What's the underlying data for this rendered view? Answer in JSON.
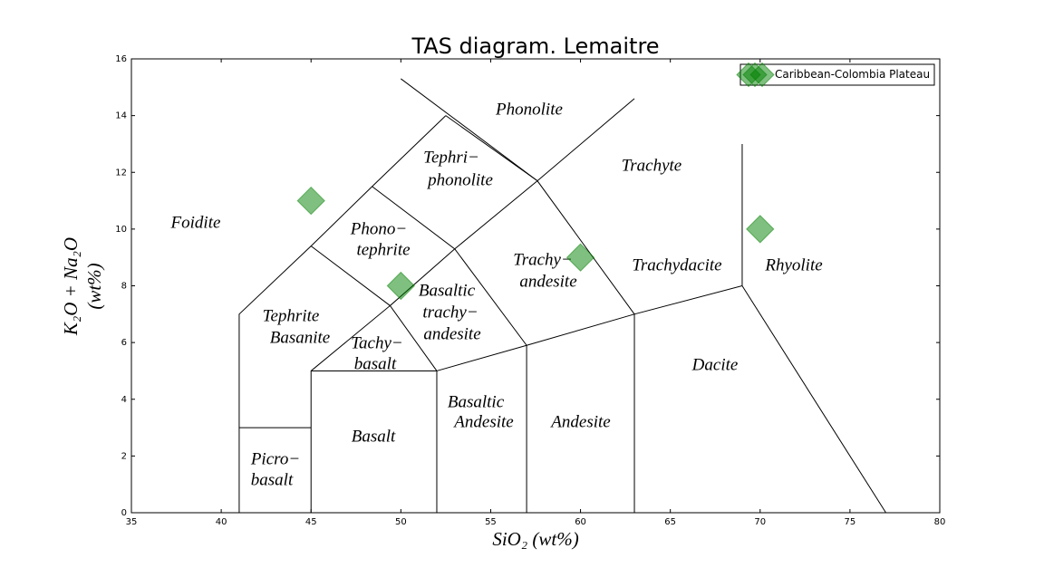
{
  "chart_data": {
    "type": "scatter",
    "title": "TAS diagram. Lemaitre",
    "x_label": "SiO₂ (wt%)",
    "y_label": [
      "K₂O + Na₂O",
      "(wt%)"
    ],
    "xlim": [
      35,
      80
    ],
    "ylim": [
      0,
      16
    ],
    "xticks": [
      35,
      40,
      45,
      50,
      55,
      60,
      65,
      70,
      75,
      80
    ],
    "yticks": [
      0,
      2,
      4,
      6,
      8,
      10,
      12,
      14,
      16
    ],
    "grid": false,
    "legend": "upper right",
    "series": [
      {
        "name": "Caribbean-Colombia Plateau",
        "color": "#008000",
        "x": [
          45,
          50,
          60,
          70
        ],
        "values": [
          11,
          8,
          9,
          10
        ]
      }
    ],
    "boundaries": [
      {
        "x": [
          41,
          41,
          45
        ],
        "y": [
          0,
          3,
          3
        ]
      },
      {
        "x": [
          41,
          41,
          45,
          48.4,
          52.5
        ],
        "y": [
          3,
          7,
          9.4,
          11.5,
          14
        ]
      },
      {
        "x": [
          45,
          45,
          52,
          52
        ],
        "y": [
          0,
          5,
          5,
          0
        ]
      },
      {
        "x": [
          45,
          49.4,
          52
        ],
        "y": [
          5,
          7.3,
          5
        ]
      },
      {
        "x": [
          45,
          49.4,
          53,
          57.6,
          63
        ],
        "y": [
          9.4,
          7.3,
          9.3,
          11.7,
          14.6
        ]
      },
      {
        "x": [
          48.4,
          53,
          57,
          57
        ],
        "y": [
          11.5,
          9.3,
          5.9,
          0
        ]
      },
      {
        "x": [
          52,
          57,
          63,
          69,
          69
        ],
        "y": [
          5,
          5.9,
          7,
          8,
          13
        ]
      },
      {
        "x": [
          52.5,
          57.6,
          63,
          63
        ],
        "y": [
          14,
          11.7,
          7,
          0
        ]
      },
      {
        "x": [
          50,
          57.6
        ],
        "y": [
          15.3,
          11.7
        ]
      },
      {
        "x": [
          69,
          77
        ],
        "y": [
          8,
          0
        ]
      }
    ],
    "annotations": [
      [
        "Phonolite"
      ],
      [
        "Tephri−",
        "phonolite"
      ],
      [
        "Trachyte"
      ],
      [
        "Foidite"
      ],
      [
        "Phono−",
        "tephrite"
      ],
      [
        "Trachy−",
        "andesite"
      ],
      [
        "Trachydacite"
      ],
      [
        "Rhyolite"
      ],
      [
        "Basaltic",
        "trachy−",
        "andesite"
      ],
      [
        "Tephrite",
        "Basanite"
      ],
      [
        "Tachy−",
        "basalt"
      ],
      [
        "Dacite"
      ],
      [
        "Basaltic",
        "Andesite"
      ],
      [
        "Andesite"
      ],
      [
        "Basalt"
      ],
      [
        "Picro−",
        "basalt"
      ]
    ]
  }
}
